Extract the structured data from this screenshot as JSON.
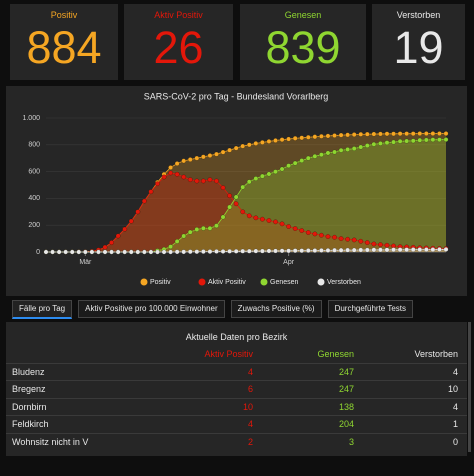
{
  "cards": [
    {
      "label": "Positiv",
      "value": 884,
      "color": "#f5a623"
    },
    {
      "label": "Aktiv Positiv",
      "value": 26,
      "color": "#e3170a"
    },
    {
      "label": "Genesen",
      "value": 839,
      "color": "#8fd631"
    },
    {
      "label": "Verstorben",
      "value": 19,
      "color": "#e8e8e8"
    }
  ],
  "chart_data": {
    "type": "line",
    "title": "SARS-CoV-2 pro Tag - Bundesland Vorarlberg",
    "categories": [
      null,
      null,
      null,
      null,
      null,
      null,
      "Mär",
      null,
      null,
      null,
      null,
      null,
      null,
      null,
      null,
      null,
      null,
      null,
      null,
      null,
      null,
      null,
      null,
      null,
      null,
      null,
      null,
      null,
      null,
      null,
      null,
      null,
      null,
      null,
      null,
      null,
      null,
      "Apr",
      null,
      null,
      null,
      null,
      null,
      null,
      null,
      null,
      null,
      null,
      null,
      null,
      null,
      null,
      null,
      null,
      null,
      null,
      null,
      null,
      null,
      null,
      null,
      null
    ],
    "series": [
      {
        "name": "Positiv",
        "color": "#f5a623",
        "values": [
          0,
          0,
          0,
          0,
          0,
          1,
          2,
          5,
          15,
          35,
          70,
          120,
          170,
          230,
          300,
          380,
          450,
          520,
          580,
          630,
          660,
          680,
          690,
          700,
          710,
          720,
          730,
          745,
          760,
          775,
          790,
          800,
          810,
          818,
          825,
          832,
          838,
          843,
          848,
          852,
          856,
          860,
          863,
          866,
          869,
          872,
          874,
          876,
          878,
          879,
          880,
          881,
          882,
          882,
          883,
          883,
          883,
          884,
          884,
          884,
          884,
          884
        ]
      },
      {
        "name": "Aktiv Positiv",
        "color": "#e3170a",
        "values": [
          0,
          0,
          0,
          0,
          0,
          1,
          2,
          5,
          15,
          35,
          70,
          120,
          170,
          230,
          300,
          380,
          450,
          510,
          560,
          590,
          580,
          560,
          540,
          530,
          530,
          540,
          530,
          480,
          420,
          360,
          300,
          270,
          255,
          245,
          235,
          225,
          210,
          190,
          175,
          160,
          145,
          135,
          125,
          115,
          110,
          100,
          95,
          90,
          80,
          70,
          60,
          55,
          50,
          45,
          40,
          38,
          35,
          32,
          30,
          28,
          27,
          26
        ]
      },
      {
        "name": "Genesen",
        "color": "#8fd631",
        "values": [
          0,
          0,
          0,
          0,
          0,
          0,
          0,
          0,
          0,
          0,
          0,
          0,
          0,
          0,
          0,
          0,
          0,
          10,
          20,
          40,
          79,
          119,
          148,
          168,
          177,
          177,
          196,
          261,
          335,
          410,
          484,
          524,
          548,
          566,
          582,
          599,
          619,
          644,
          663,
          682,
          700,
          714,
          726,
          739,
          746,
          759,
          765,
          772,
          783,
          794,
          804,
          810,
          816,
          820,
          826,
          828,
          830,
          834,
          836,
          838,
          838,
          839
        ]
      },
      {
        "name": "Verstorben",
        "color": "#e8e8e8",
        "values": [
          0,
          0,
          0,
          0,
          0,
          0,
          0,
          0,
          0,
          0,
          0,
          0,
          0,
          0,
          0,
          0,
          0,
          0,
          0,
          0,
          1,
          1,
          2,
          2,
          3,
          3,
          4,
          4,
          5,
          5,
          6,
          6,
          7,
          7,
          8,
          8,
          9,
          9,
          10,
          10,
          11,
          11,
          12,
          12,
          13,
          13,
          14,
          14,
          15,
          15,
          16,
          16,
          16,
          17,
          17,
          17,
          18,
          18,
          18,
          18,
          19,
          19
        ]
      }
    ],
    "ylim": [
      0,
      1000
    ],
    "yticks": [
      0,
      200,
      400,
      600,
      800,
      {
        "value": 1000,
        "label": "1.000"
      }
    ],
    "grid": true,
    "area": true,
    "legend": "bottom"
  },
  "tabs": [
    {
      "label": "Fälle pro Tag",
      "selected": true
    },
    {
      "label": "Aktiv Positive pro 100.000 Einwohner",
      "selected": false
    },
    {
      "label": "Zuwachs Positive (%)",
      "selected": false
    },
    {
      "label": "Durchgeführte Tests",
      "selected": false
    }
  ],
  "table": {
    "title": "Aktuelle Daten pro Bezirk",
    "columns": [
      {
        "label": "Aktiv Positiv",
        "color": "#e3170a"
      },
      {
        "label": "Genesen",
        "color": "#8fd631"
      },
      {
        "label": "Verstorben",
        "color": "#e8e8e8"
      }
    ],
    "rows": [
      {
        "name": "Bludenz",
        "values": [
          4,
          247,
          4
        ]
      },
      {
        "name": "Bregenz",
        "values": [
          6,
          247,
          10
        ]
      },
      {
        "name": "Dornbirn",
        "values": [
          10,
          138,
          4
        ]
      },
      {
        "name": "Feldkirch",
        "values": [
          4,
          204,
          1
        ]
      },
      {
        "name": "Wohnsitz nicht in V",
        "values": [
          2,
          3,
          0
        ]
      }
    ]
  }
}
